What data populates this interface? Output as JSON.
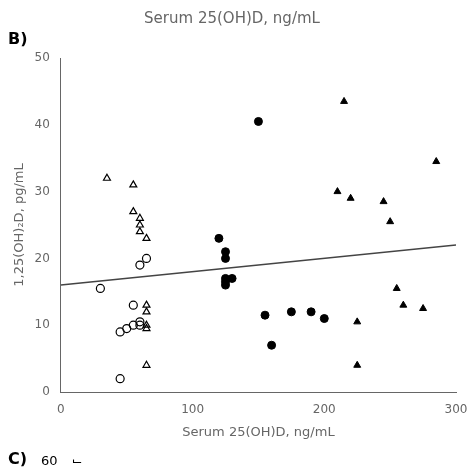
{
  "chart_data": {
    "type": "scatter",
    "title": "Serum 25(OH)D, ng/mL",
    "x_label": "Serum 25(OH)D, ng/mL",
    "y_label": "1,25(OH)₂D, pg/mL",
    "annotations": [
      "B)",
      "C)",
      "60",
      "¬"
    ],
    "xlim": [
      0,
      300
    ],
    "ylim": [
      0,
      50
    ],
    "xticks": [
      0,
      100,
      200,
      300
    ],
    "yticks": [
      0,
      10,
      20,
      30,
      40,
      50
    ],
    "grid": false,
    "series": [
      {
        "type": "scatter",
        "marker": "open-circle",
        "color": "#000000",
        "x": [
          30,
          45,
          45,
          50,
          55,
          55,
          60,
          60,
          60,
          65
        ],
        "values": [
          15.5,
          2,
          9,
          9.5,
          10,
          13,
          10,
          10.5,
          19,
          20
        ]
      },
      {
        "type": "scatter",
        "marker": "open-triangle",
        "color": "#000000",
        "x": [
          35,
          55,
          55,
          60,
          60,
          60,
          65,
          65,
          65,
          65,
          65,
          65
        ],
        "values": [
          32,
          31,
          27,
          26,
          25,
          24,
          23,
          13,
          12,
          10,
          9.5,
          4
        ]
      },
      {
        "type": "scatter",
        "marker": "circle",
        "color": "#000000",
        "x": [
          120,
          125,
          125,
          125,
          125,
          125,
          130,
          150,
          155,
          160,
          175,
          190,
          200
        ],
        "values": [
          23,
          21,
          20,
          17,
          16.5,
          16,
          17,
          40.5,
          11.5,
          7,
          12,
          12,
          11
        ]
      },
      {
        "type": "scatter",
        "marker": "triangle",
        "color": "#000000",
        "x": [
          210,
          215,
          220,
          225,
          225,
          245,
          250,
          255,
          260,
          275,
          285
        ],
        "values": [
          30,
          43.5,
          29,
          10.5,
          4,
          28.5,
          25.5,
          15.5,
          13,
          12.5,
          34.5
        ]
      },
      {
        "type": "line",
        "line_style": "solid",
        "color": "#444444",
        "x": [
          0,
          300
        ],
        "values": [
          16.0,
          22.0
        ]
      }
    ]
  }
}
